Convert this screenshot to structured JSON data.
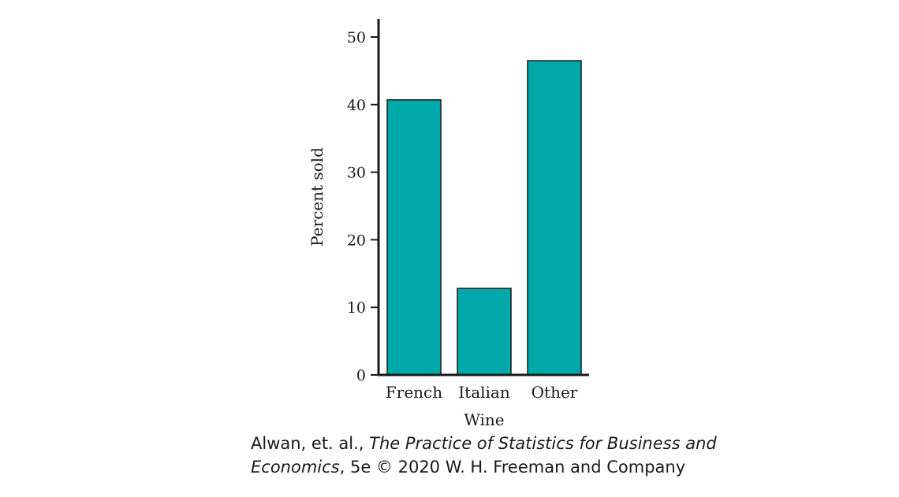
{
  "chart_data": {
    "type": "bar",
    "categories": [
      "French",
      "Italian",
      "Other"
    ],
    "values": [
      40.7,
      12.8,
      46.5
    ],
    "xlabel": "Wine",
    "ylabel": "Percent sold",
    "ylim": [
      0,
      50
    ],
    "yticks": [
      "0",
      "10",
      "20",
      "30",
      "40",
      "50"
    ],
    "grid": false,
    "legend": "none",
    "bar_color": "#00a9a9",
    "bar_outline": "#1a1a1a"
  },
  "credit": {
    "line1_prefix": "Alwan, et. al., ",
    "line1_title": "The Practice of Statistics for Business and",
    "line2_title": "Economics",
    "line2_suffix": ", 5e © 2020 W. H. Freeman and Company"
  }
}
